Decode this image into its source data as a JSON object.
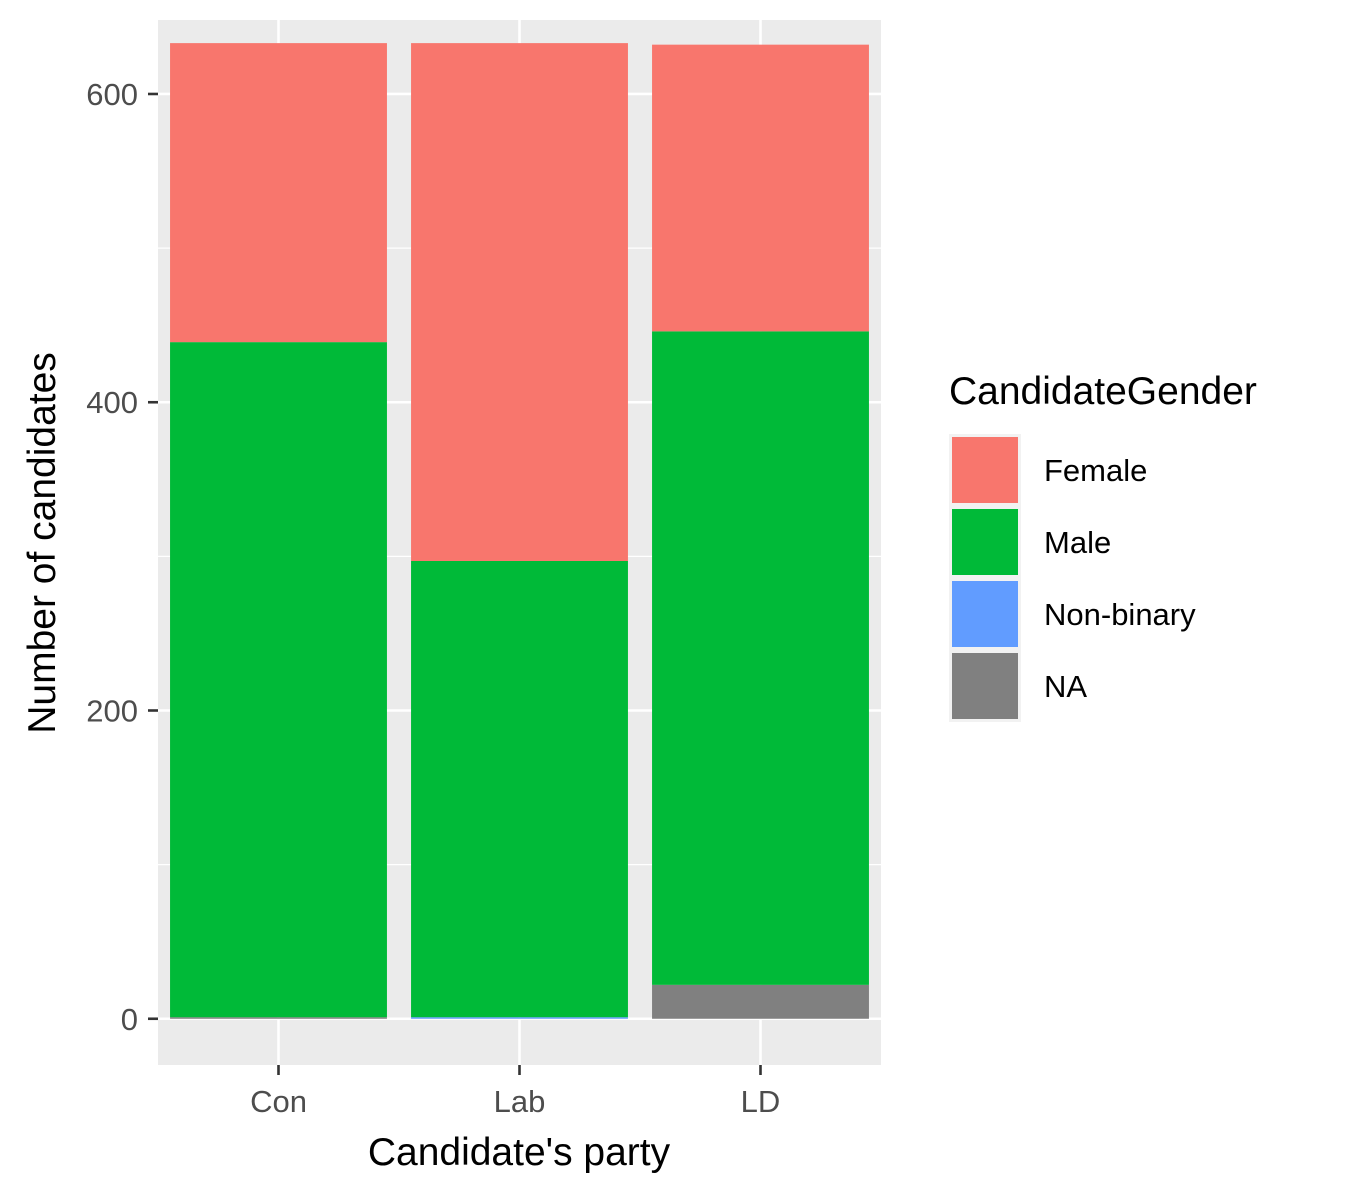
{
  "chart_data": {
    "type": "bar",
    "stacked": true,
    "xlabel": "Candidate's party",
    "ylabel": "Number of candidates",
    "categories": [
      "Con",
      "Lab",
      "LD"
    ],
    "ylim": [
      -30,
      648
    ],
    "yticks": [
      0,
      200,
      400,
      600
    ],
    "grid": true,
    "legend_title": "CandidateGender",
    "legend_position": "right",
    "series": [
      {
        "name": "Female",
        "color": "#F8766D",
        "values": [
          194,
          336,
          186
        ]
      },
      {
        "name": "Male",
        "color": "#00BA38",
        "values": [
          438,
          296,
          424
        ]
      },
      {
        "name": "Non-binary",
        "color": "#619CFF",
        "values": [
          0,
          1,
          0
        ]
      },
      {
        "name": "NA",
        "color": "#808080",
        "values": [
          1,
          0,
          22
        ]
      }
    ]
  }
}
